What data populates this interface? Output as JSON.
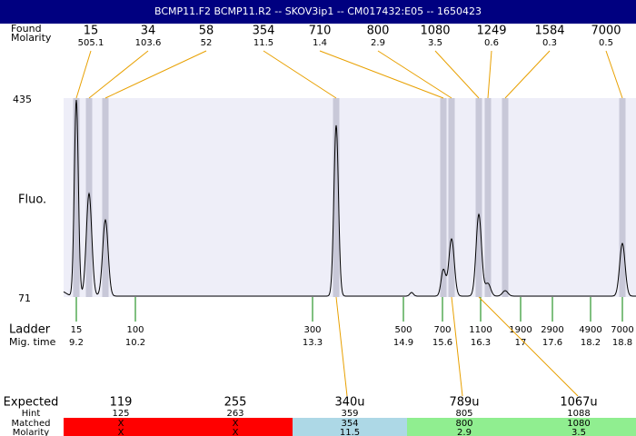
{
  "header": {
    "title": "BCMP11.F2  BCMP11.R2 -- SKOV3ip1 -- CM017432:E05 -- 1650423"
  },
  "found": {
    "label": "Found",
    "molarity_label": "Molarity",
    "sizes": [
      15,
      34,
      58,
      354,
      710,
      800,
      1080,
      1249,
      1584,
      7000
    ],
    "molarities": [
      505.1,
      103.6,
      52,
      11.5,
      1.4,
      2.9,
      3.5,
      0.6,
      0.3,
      0.5
    ]
  },
  "axis": {
    "label": "Fluo.",
    "max": 435,
    "min": 71
  },
  "ladder": {
    "label": "Ladder",
    "time_label": "Mig. time",
    "sizes": [
      15,
      100,
      300,
      500,
      700,
      1100,
      1900,
      2900,
      4900,
      7000
    ],
    "times": [
      9.2,
      10.2,
      13.3,
      14.9,
      15.6,
      16.3,
      17,
      17.6,
      18.2,
      18.8
    ]
  },
  "table": {
    "row_labels": [
      "Expected",
      "Hint",
      "Matched",
      "Molarity"
    ],
    "columns": [
      {
        "expected": "119",
        "hint": 125,
        "matched": "X",
        "molarity": "X",
        "color": "#ff0000"
      },
      {
        "expected": "255",
        "hint": 263,
        "matched": "X",
        "molarity": "X",
        "color": "#ff0000"
      },
      {
        "expected": "340u",
        "hint": 359,
        "matched": 354,
        "molarity": 11.5,
        "color": "#add8e6"
      },
      {
        "expected": "789u",
        "hint": 805,
        "matched": 800,
        "molarity": 2.9,
        "color": "#90ee90"
      },
      {
        "expected": "1067u",
        "hint": 1088,
        "matched": 1080,
        "molarity": 3.5,
        "color": "#90ee90"
      }
    ]
  }
}
